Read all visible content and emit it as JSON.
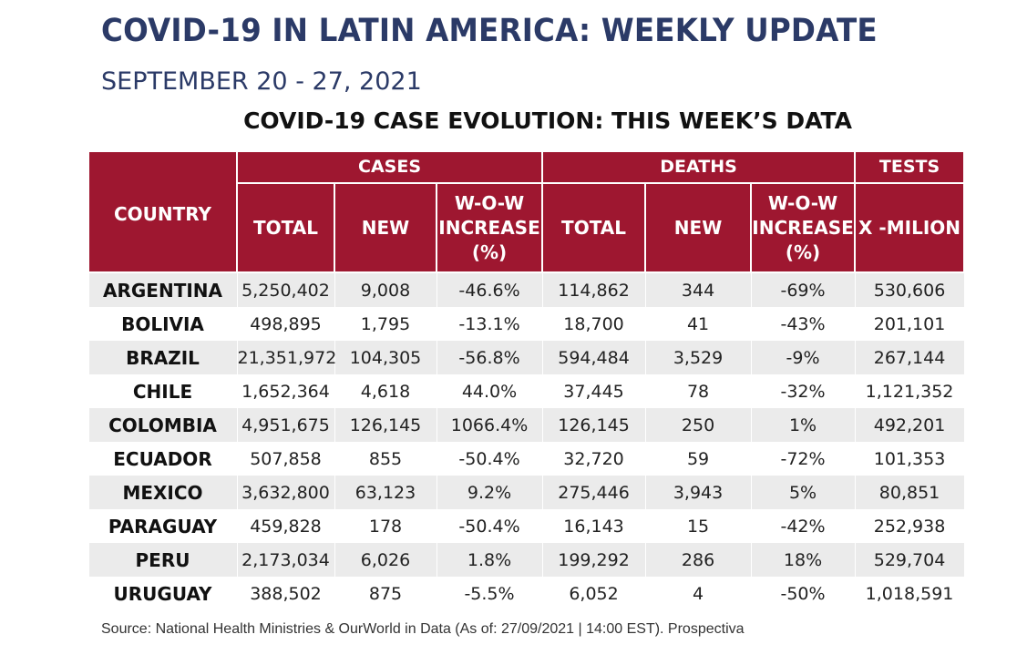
{
  "header": {
    "title": "COVID-19 IN LATIN AMERICA: WEEKLY UPDATE",
    "date_range": "SEPTEMBER 20 - 27, 2021",
    "table_title": "COVID-19 CASE EVOLUTION: THIS WEEK’S DATA"
  },
  "table": {
    "columns": {
      "country": "COUNTRY",
      "cases": "CASES",
      "deaths": "DEATHS",
      "tests": "TESTS",
      "total": "TOTAL",
      "new": "NEW",
      "wow_line1": "W-O-W",
      "wow_line2": "INCREASE",
      "wow_line3": "(%)",
      "tests_unit": "X -MILION"
    },
    "rows": [
      [
        "ARGENTINA",
        "5,250,402",
        "9,008",
        "-46.6%",
        "114,862",
        "344",
        "-69%",
        "530,606"
      ],
      [
        "BOLIVIA",
        "498,895",
        "1,795",
        "-13.1%",
        "18,700",
        "41",
        "-43%",
        "201,101"
      ],
      [
        "BRAZIL",
        "21,351,972",
        "104,305",
        "-56.8%",
        "594,484",
        "3,529",
        "-9%",
        "267,144"
      ],
      [
        "CHILE",
        "1,652,364",
        "4,618",
        "44.0%",
        "37,445",
        "78",
        "-32%",
        "1,121,352"
      ],
      [
        "COLOMBIA",
        "4,951,675",
        "126,145",
        "1066.4%",
        "126,145",
        "250",
        "1%",
        "492,201"
      ],
      [
        "ECUADOR",
        "507,858",
        "855",
        "-50.4%",
        "32,720",
        "59",
        "-72%",
        "101,353"
      ],
      [
        "MEXICO",
        "3,632,800",
        "63,123",
        "9.2%",
        "275,446",
        "3,943",
        "5%",
        "80,851"
      ],
      [
        "PARAGUAY",
        "459,828",
        "178",
        "-50.4%",
        "16,143",
        "15",
        "-42%",
        "252,938"
      ],
      [
        "PERU",
        "2,173,034",
        "6,026",
        "1.8%",
        "199,292",
        "286",
        "18%",
        "529,704"
      ],
      [
        "URUGUAY",
        "388,502",
        "875",
        "-5.5%",
        "6,052",
        "4",
        "-50%",
        "1,018,591"
      ]
    ]
  },
  "footer": {
    "source": "Source: National Health Ministries & OurWorld in Data (As of: 27/09/2021 | 14:00 EST). Prospectiva"
  }
}
